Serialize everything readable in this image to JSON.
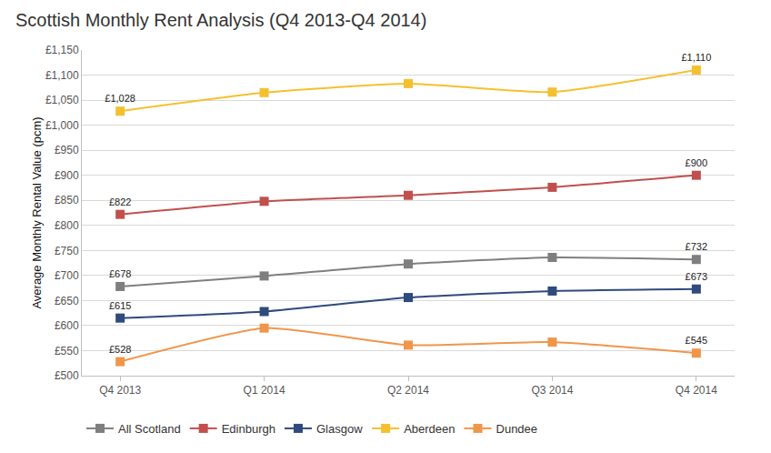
{
  "chart_data": {
    "type": "line",
    "title": "Scottish Monthly Rent Analysis (Q4 2013-Q4 2014)",
    "y_label": "Average Monthly Rental Value (pcm)",
    "categories": [
      "Q4 2013",
      "Q1 2014",
      "Q2 2014",
      "Q3 2014",
      "Q4 2014"
    ],
    "series": [
      {
        "name": "All Scotland",
        "color": "#7f7f7f",
        "values": [
          678,
          699,
          723,
          736,
          732
        ],
        "value_labels": [
          "£678",
          null,
          null,
          null,
          "£732"
        ]
      },
      {
        "name": "Edinburgh",
        "color": "#c0504d",
        "values": [
          822,
          848,
          860,
          876,
          900
        ],
        "value_labels": [
          "£822",
          null,
          null,
          null,
          "£900"
        ]
      },
      {
        "name": "Glasgow",
        "color": "#2f4a7c",
        "values": [
          615,
          628,
          656,
          669,
          673
        ],
        "value_labels": [
          "£615",
          null,
          null,
          null,
          "£673"
        ]
      },
      {
        "name": "Aberdeen",
        "color": "#f5c02f",
        "values": [
          1028,
          1065,
          1083,
          1066,
          1110
        ],
        "value_labels": [
          "£1,028",
          null,
          null,
          null,
          "£1,110"
        ]
      },
      {
        "name": "Dundee",
        "color": "#f0964b",
        "values": [
          528,
          595,
          561,
          567,
          545
        ],
        "value_labels": [
          "£528",
          null,
          null,
          null,
          "£545"
        ]
      }
    ],
    "ylim": [
      500,
      1150
    ],
    "yticks": [
      {
        "value": 500,
        "label": "£500"
      },
      {
        "value": 550,
        "label": "£550"
      },
      {
        "value": 600,
        "label": "£600"
      },
      {
        "value": 650,
        "label": "£650"
      },
      {
        "value": 700,
        "label": "£700"
      },
      {
        "value": 750,
        "label": "£750"
      },
      {
        "value": 800,
        "label": "£800"
      },
      {
        "value": 850,
        "label": "£850"
      },
      {
        "value": 900,
        "label": "£900"
      },
      {
        "value": 950,
        "label": "£950"
      },
      {
        "value": 1000,
        "label": "£1,000"
      },
      {
        "value": 1050,
        "label": "£1,050"
      },
      {
        "value": 1100,
        "label": "£1,100"
      },
      {
        "value": 1150,
        "label": "£1,150"
      }
    ],
    "grid": true,
    "legend": "bottom",
    "data_labels": true,
    "marker": "square"
  }
}
